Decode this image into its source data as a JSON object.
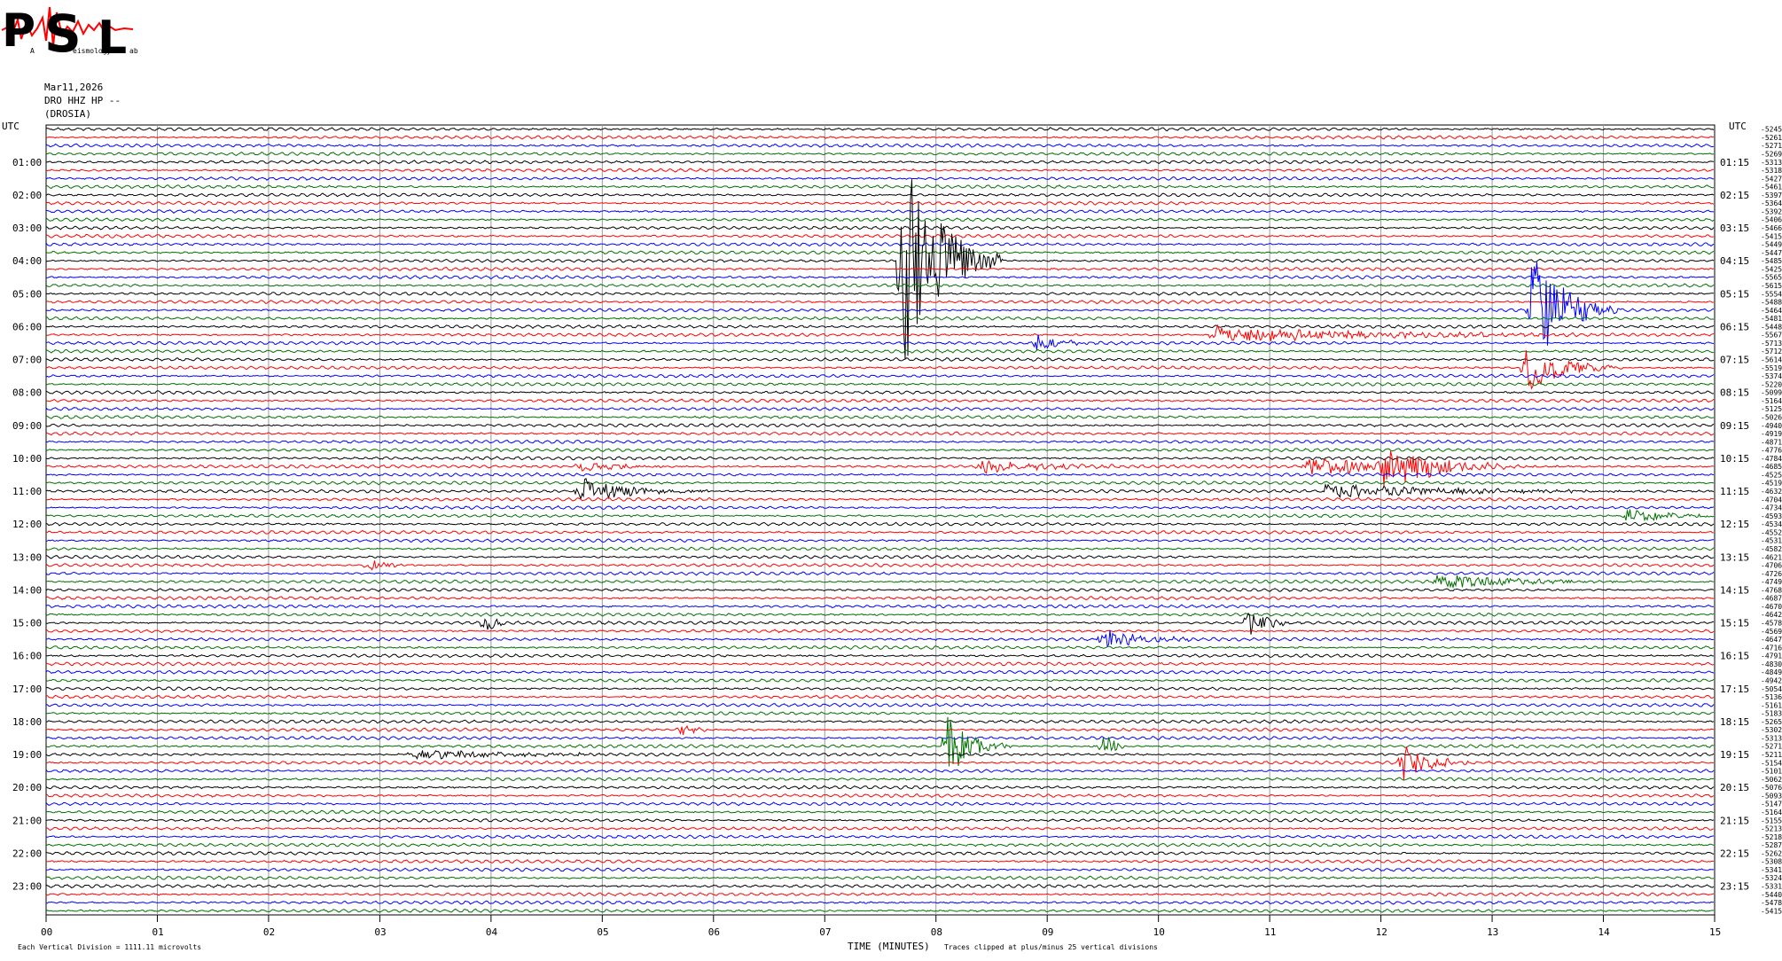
{
  "logo": {
    "letters": [
      "P",
      "S",
      "L"
    ],
    "subtext": [
      "A",
      "eismology",
      "ab"
    ],
    "colors": {
      "letters": "#19b6d9",
      "wave": "#ff0000"
    }
  },
  "header": {
    "date": "Mar11,2026",
    "station": "DRO HHZ HP --",
    "site": "(DROSIA)"
  },
  "axes": {
    "left_title": "UTC",
    "right_title": "UTC",
    "x_title": "TIME (MINUTES)",
    "left_hour_labels": [
      "01:00",
      "02:00",
      "03:00",
      "04:00",
      "05:00",
      "06:00",
      "07:00",
      "08:00",
      "09:00",
      "10:00",
      "11:00",
      "12:00",
      "13:00",
      "14:00",
      "15:00",
      "16:00",
      "17:00",
      "18:00",
      "19:00",
      "20:00",
      "21:00",
      "22:00",
      "23:00"
    ],
    "right_hour_labels": [
      "01:15",
      "02:15",
      "03:15",
      "04:15",
      "05:15",
      "06:15",
      "07:15",
      "08:15",
      "09:15",
      "10:15",
      "11:15",
      "12:15",
      "13:15",
      "14:15",
      "15:15",
      "16:15",
      "17:15",
      "18:15",
      "19:15",
      "20:15",
      "21:15",
      "22:15",
      "23:15"
    ],
    "x_tick_labels": [
      "00",
      "01",
      "02",
      "03",
      "04",
      "05",
      "06",
      "07",
      "08",
      "09",
      "10",
      "11",
      "12",
      "13",
      "14",
      "15"
    ]
  },
  "footer": {
    "left_note": "Each Vertical Division = 1111.11 microvolts",
    "right_note": "Traces clipped at plus/minus 25 vertical divisions"
  },
  "chart_data": {
    "type": "line",
    "title": "",
    "xlabel": "TIME (MINUTES)",
    "ylabel": "UTC",
    "xlim": [
      0,
      15
    ],
    "trace_colors": [
      "#000000",
      "#ff0000",
      "#0000ff",
      "#007000"
    ],
    "row_count": 96,
    "minutes_per_row": 15,
    "row_offsets": [
      "-5245",
      "-5261",
      "-5271",
      "-5269",
      "-5313",
      "-5318",
      "-5427",
      "-5461",
      "-5397",
      "-5364",
      "-5392",
      "-5406",
      "-5466",
      "-5415",
      "-5449",
      "-5447",
      "-5485",
      "-5425",
      "-5565",
      "-5615",
      "-5554",
      "-5488",
      "-5464",
      "-5481",
      "-5448",
      "-5567",
      "-5713",
      "-5712",
      "-5614",
      "-5519",
      "-5374",
      "-5220",
      "-5099",
      "-5164",
      "-5125",
      "-5026",
      "-4940",
      "-4919",
      "-4871",
      "-4776",
      "-4784",
      "-4685",
      "-4525",
      "-4519",
      "-4632",
      "-4704",
      "-4734",
      "-4593",
      "-4534",
      "-4552",
      "-4531",
      "-4582",
      "-4621",
      "-4706",
      "-4726",
      "-4749",
      "-4768",
      "-4687",
      "-4670",
      "-4642",
      "-4578",
      "-4569",
      "-4647",
      "-4716",
      "-4791",
      "-4830",
      "-4849",
      "-4942",
      "-5054",
      "-5136",
      "-5161",
      "-5183",
      "-5265",
      "-5302",
      "-5313",
      "-5271",
      "-5211",
      "-5154",
      "-5101",
      "-5062",
      "-5076",
      "-5093",
      "-5147",
      "-5164",
      "-5155",
      "-5213",
      "-5218",
      "-5287",
      "-5262",
      "-5308",
      "-5341",
      "-5324",
      "-5331",
      "-5440",
      "-5478",
      "-5415"
    ],
    "events": [
      {
        "row": 16,
        "minute": 7.7,
        "amplitude": 25,
        "duration": 0.9
      },
      {
        "row": 22,
        "minute": 13.35,
        "amplitude": 14,
        "duration": 0.8
      },
      {
        "row": 25,
        "minute": 10.5,
        "amplitude": 2,
        "duration": 3.5
      },
      {
        "row": 26,
        "minute": 8.9,
        "amplitude": 2,
        "duration": 0.6
      },
      {
        "row": 29,
        "minute": 13.3,
        "amplitude": 6,
        "duration": 0.9
      },
      {
        "row": 41,
        "minute": 12.0,
        "amplitude": 6,
        "duration": 1.2
      },
      {
        "row": 41,
        "minute": 11.3,
        "amplitude": 2,
        "duration": 2.5
      },
      {
        "row": 41,
        "minute": 8.4,
        "amplitude": 1.5,
        "duration": 1.5
      },
      {
        "row": 41,
        "minute": 4.8,
        "amplitude": 1.2,
        "duration": 1.0
      },
      {
        "row": 44,
        "minute": 4.8,
        "amplitude": 3,
        "duration": 1.2
      },
      {
        "row": 44,
        "minute": 11.5,
        "amplitude": 1.5,
        "duration": 3.5
      },
      {
        "row": 47,
        "minute": 14.2,
        "amplitude": 1.5,
        "duration": 1.2
      },
      {
        "row": 53,
        "minute": 2.9,
        "amplitude": 1.5,
        "duration": 0.4
      },
      {
        "row": 55,
        "minute": 12.5,
        "amplitude": 1.5,
        "duration": 2.0
      },
      {
        "row": 60,
        "minute": 10.8,
        "amplitude": 4,
        "duration": 0.4
      },
      {
        "row": 60,
        "minute": 3.95,
        "amplitude": 3,
        "duration": 0.2
      },
      {
        "row": 62,
        "minute": 9.5,
        "amplitude": 2.5,
        "duration": 0.8
      },
      {
        "row": 73,
        "minute": 5.7,
        "amplitude": 1.2,
        "duration": 0.6
      },
      {
        "row": 75,
        "minute": 8.1,
        "amplitude": 7,
        "duration": 0.6
      },
      {
        "row": 75,
        "minute": 9.5,
        "amplitude": 5,
        "duration": 0.2
      },
      {
        "row": 76,
        "minute": 3.3,
        "amplitude": 1.2,
        "duration": 2.4
      },
      {
        "row": 77,
        "minute": 12.2,
        "amplitude": 4,
        "duration": 0.6
      }
    ]
  }
}
